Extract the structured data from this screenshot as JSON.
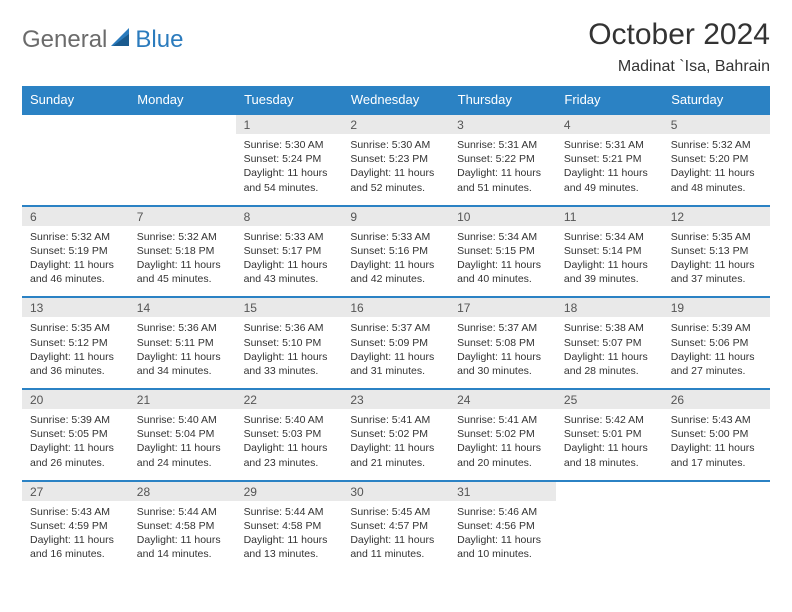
{
  "brand": {
    "part1": "General",
    "part2": "Blue"
  },
  "title": "October 2024",
  "location": "Madinat `Isa, Bahrain",
  "colors": {
    "header_bg": "#2b82c4",
    "header_text": "#ffffff",
    "daynum_bg": "#e9e9e9",
    "row_divider": "#2b82c4",
    "text": "#333333",
    "logo_gray": "#6b6b6b",
    "logo_blue": "#2b7bbd"
  },
  "day_headers": [
    "Sunday",
    "Monday",
    "Tuesday",
    "Wednesday",
    "Thursday",
    "Friday",
    "Saturday"
  ],
  "weeks": [
    [
      {
        "empty": true
      },
      {
        "empty": true
      },
      {
        "d": "1",
        "sr": "Sunrise: 5:30 AM",
        "ss": "Sunset: 5:24 PM",
        "dl": "Daylight: 11 hours and 54 minutes."
      },
      {
        "d": "2",
        "sr": "Sunrise: 5:30 AM",
        "ss": "Sunset: 5:23 PM",
        "dl": "Daylight: 11 hours and 52 minutes."
      },
      {
        "d": "3",
        "sr": "Sunrise: 5:31 AM",
        "ss": "Sunset: 5:22 PM",
        "dl": "Daylight: 11 hours and 51 minutes."
      },
      {
        "d": "4",
        "sr": "Sunrise: 5:31 AM",
        "ss": "Sunset: 5:21 PM",
        "dl": "Daylight: 11 hours and 49 minutes."
      },
      {
        "d": "5",
        "sr": "Sunrise: 5:32 AM",
        "ss": "Sunset: 5:20 PM",
        "dl": "Daylight: 11 hours and 48 minutes."
      }
    ],
    [
      {
        "d": "6",
        "sr": "Sunrise: 5:32 AM",
        "ss": "Sunset: 5:19 PM",
        "dl": "Daylight: 11 hours and 46 minutes."
      },
      {
        "d": "7",
        "sr": "Sunrise: 5:32 AM",
        "ss": "Sunset: 5:18 PM",
        "dl": "Daylight: 11 hours and 45 minutes."
      },
      {
        "d": "8",
        "sr": "Sunrise: 5:33 AM",
        "ss": "Sunset: 5:17 PM",
        "dl": "Daylight: 11 hours and 43 minutes."
      },
      {
        "d": "9",
        "sr": "Sunrise: 5:33 AM",
        "ss": "Sunset: 5:16 PM",
        "dl": "Daylight: 11 hours and 42 minutes."
      },
      {
        "d": "10",
        "sr": "Sunrise: 5:34 AM",
        "ss": "Sunset: 5:15 PM",
        "dl": "Daylight: 11 hours and 40 minutes."
      },
      {
        "d": "11",
        "sr": "Sunrise: 5:34 AM",
        "ss": "Sunset: 5:14 PM",
        "dl": "Daylight: 11 hours and 39 minutes."
      },
      {
        "d": "12",
        "sr": "Sunrise: 5:35 AM",
        "ss": "Sunset: 5:13 PM",
        "dl": "Daylight: 11 hours and 37 minutes."
      }
    ],
    [
      {
        "d": "13",
        "sr": "Sunrise: 5:35 AM",
        "ss": "Sunset: 5:12 PM",
        "dl": "Daylight: 11 hours and 36 minutes."
      },
      {
        "d": "14",
        "sr": "Sunrise: 5:36 AM",
        "ss": "Sunset: 5:11 PM",
        "dl": "Daylight: 11 hours and 34 minutes."
      },
      {
        "d": "15",
        "sr": "Sunrise: 5:36 AM",
        "ss": "Sunset: 5:10 PM",
        "dl": "Daylight: 11 hours and 33 minutes."
      },
      {
        "d": "16",
        "sr": "Sunrise: 5:37 AM",
        "ss": "Sunset: 5:09 PM",
        "dl": "Daylight: 11 hours and 31 minutes."
      },
      {
        "d": "17",
        "sr": "Sunrise: 5:37 AM",
        "ss": "Sunset: 5:08 PM",
        "dl": "Daylight: 11 hours and 30 minutes."
      },
      {
        "d": "18",
        "sr": "Sunrise: 5:38 AM",
        "ss": "Sunset: 5:07 PM",
        "dl": "Daylight: 11 hours and 28 minutes."
      },
      {
        "d": "19",
        "sr": "Sunrise: 5:39 AM",
        "ss": "Sunset: 5:06 PM",
        "dl": "Daylight: 11 hours and 27 minutes."
      }
    ],
    [
      {
        "d": "20",
        "sr": "Sunrise: 5:39 AM",
        "ss": "Sunset: 5:05 PM",
        "dl": "Daylight: 11 hours and 26 minutes."
      },
      {
        "d": "21",
        "sr": "Sunrise: 5:40 AM",
        "ss": "Sunset: 5:04 PM",
        "dl": "Daylight: 11 hours and 24 minutes."
      },
      {
        "d": "22",
        "sr": "Sunrise: 5:40 AM",
        "ss": "Sunset: 5:03 PM",
        "dl": "Daylight: 11 hours and 23 minutes."
      },
      {
        "d": "23",
        "sr": "Sunrise: 5:41 AM",
        "ss": "Sunset: 5:02 PM",
        "dl": "Daylight: 11 hours and 21 minutes."
      },
      {
        "d": "24",
        "sr": "Sunrise: 5:41 AM",
        "ss": "Sunset: 5:02 PM",
        "dl": "Daylight: 11 hours and 20 minutes."
      },
      {
        "d": "25",
        "sr": "Sunrise: 5:42 AM",
        "ss": "Sunset: 5:01 PM",
        "dl": "Daylight: 11 hours and 18 minutes."
      },
      {
        "d": "26",
        "sr": "Sunrise: 5:43 AM",
        "ss": "Sunset: 5:00 PM",
        "dl": "Daylight: 11 hours and 17 minutes."
      }
    ],
    [
      {
        "d": "27",
        "sr": "Sunrise: 5:43 AM",
        "ss": "Sunset: 4:59 PM",
        "dl": "Daylight: 11 hours and 16 minutes."
      },
      {
        "d": "28",
        "sr": "Sunrise: 5:44 AM",
        "ss": "Sunset: 4:58 PM",
        "dl": "Daylight: 11 hours and 14 minutes."
      },
      {
        "d": "29",
        "sr": "Sunrise: 5:44 AM",
        "ss": "Sunset: 4:58 PM",
        "dl": "Daylight: 11 hours and 13 minutes."
      },
      {
        "d": "30",
        "sr": "Sunrise: 5:45 AM",
        "ss": "Sunset: 4:57 PM",
        "dl": "Daylight: 11 hours and 11 minutes."
      },
      {
        "d": "31",
        "sr": "Sunrise: 5:46 AM",
        "ss": "Sunset: 4:56 PM",
        "dl": "Daylight: 11 hours and 10 minutes."
      },
      {
        "empty": true
      },
      {
        "empty": true
      }
    ]
  ]
}
